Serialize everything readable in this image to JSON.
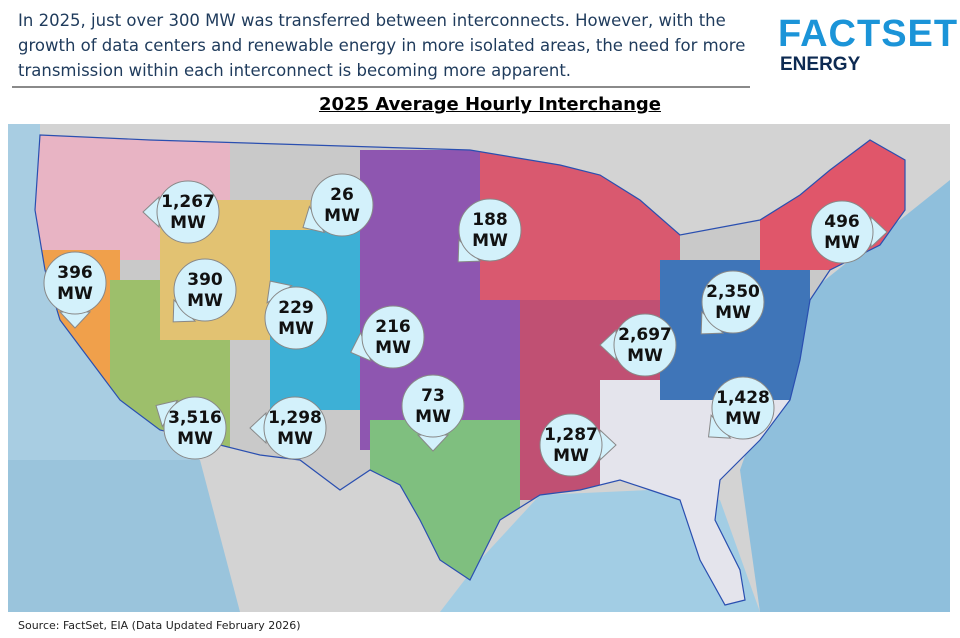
{
  "header": {
    "text": "In 2025, just over 300 MW was transferred between interconnects. However, with the growth of data centers and renewable energy in more isolated areas, the need for more transmission within each interconnect is becoming more apparent.",
    "logo": "FACTSET",
    "logo_sub": "ENERGY"
  },
  "title": "2025 Average Hourly Interchange",
  "flows": [
    {
      "value": "1,267",
      "unit": "MW"
    },
    {
      "value": "26",
      "unit": "MW"
    },
    {
      "value": "188",
      "unit": "MW"
    },
    {
      "value": "496",
      "unit": "MW"
    },
    {
      "value": "396",
      "unit": "MW"
    },
    {
      "value": "390",
      "unit": "MW"
    },
    {
      "value": "229",
      "unit": "MW"
    },
    {
      "value": "216",
      "unit": "MW"
    },
    {
      "value": "2,350",
      "unit": "MW"
    },
    {
      "value": "2,697",
      "unit": "MW"
    },
    {
      "value": "73",
      "unit": "MW"
    },
    {
      "value": "1,428",
      "unit": "MW"
    },
    {
      "value": "3,516",
      "unit": "MW"
    },
    {
      "value": "1,298",
      "unit": "MW"
    },
    {
      "value": "1,287",
      "unit": "MW"
    }
  ],
  "source": "Source: FactSet, EIA (Data Updated February 2026)"
}
